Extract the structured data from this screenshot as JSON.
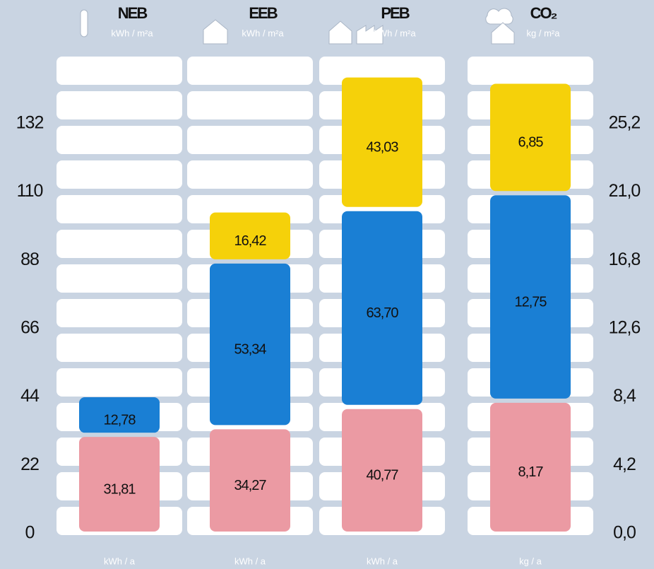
{
  "chart_data": {
    "type": "stacked-bar",
    "categories": [
      "NEB",
      "EEB",
      "PEB",
      "CO₂"
    ],
    "header_units": [
      "kWh / m²a",
      "kWh / m²a",
      "kWh / m²a",
      "kg / m²a"
    ],
    "footer_units": [
      "kWh / a",
      "kWh / a",
      "kWh / a",
      "kg / a"
    ],
    "series": [
      {
        "color": "#eb9aa3",
        "axis": "y",
        "values": [
          31.81,
          34.27,
          40.77,
          null
        ],
        "value_labels": [
          "31,81",
          "34,27",
          "40,77",
          null
        ]
      },
      {
        "color": "#1a7fd4",
        "axis": "y",
        "values": [
          12.78,
          53.34,
          63.7,
          null
        ],
        "value_labels": [
          "12,78",
          "53,34",
          "63,70",
          null
        ]
      },
      {
        "color": "#f5d10a",
        "axis": "y",
        "values": [
          null,
          16.42,
          43.03,
          null
        ],
        "value_labels": [
          null,
          "16,42",
          "43,03",
          null
        ]
      },
      {
        "color": "#eb9aa3",
        "axis": "y2",
        "values": [
          null,
          null,
          null,
          8.17
        ],
        "value_labels": [
          null,
          null,
          null,
          "8,17"
        ]
      },
      {
        "color": "#1a7fd4",
        "axis": "y2",
        "values": [
          null,
          null,
          null,
          12.75
        ],
        "value_labels": [
          null,
          null,
          null,
          "12,75"
        ]
      },
      {
        "color": "#f5d10a",
        "axis": "y2",
        "values": [
          null,
          null,
          null,
          6.85
        ],
        "value_labels": [
          null,
          null,
          null,
          "6,85"
        ]
      }
    ],
    "ylim": [
      0,
      154
    ],
    "yticks": [
      0,
      22,
      44,
      66,
      88,
      110,
      132
    ],
    "y2lim": [
      0,
      29.4
    ],
    "y2ticks": [
      {
        "value": 0,
        "label": "0,0"
      },
      {
        "value": 4.2,
        "label": "4,2"
      },
      {
        "value": 8.4,
        "label": "8,4"
      },
      {
        "value": 12.6,
        "label": "12,6"
      },
      {
        "value": 16.8,
        "label": "16,8"
      },
      {
        "value": 21,
        "label": "21,0"
      },
      {
        "value": 25.2,
        "label": "25,2"
      }
    ]
  }
}
